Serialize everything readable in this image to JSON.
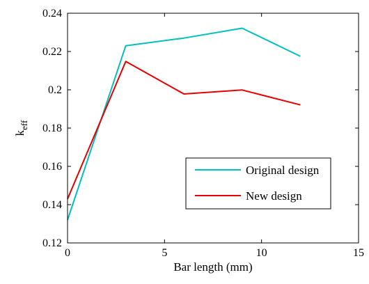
{
  "chart_data": {
    "type": "line",
    "xlabel": "Bar length (mm)",
    "ylabel_main": "k",
    "ylabel_sub": "eff",
    "xlim": [
      0,
      15
    ],
    "ylim": [
      0.12,
      0.24
    ],
    "xticks": [
      0,
      5,
      10,
      15
    ],
    "xtick_labels": [
      "0",
      "5",
      "10",
      "15"
    ],
    "yticks": [
      0.12,
      0.14,
      0.16,
      0.18,
      0.2,
      0.22,
      0.24
    ],
    "ytick_labels": [
      "0.12",
      "0.14",
      "0.16",
      "0.18",
      "0.2",
      "0.22",
      "0.24"
    ],
    "grid": false,
    "legend_position": "lower-right",
    "series": [
      {
        "name": "Original design",
        "color": "#00bfbf",
        "x": [
          0,
          3,
          6,
          9,
          12
        ],
        "y": [
          0.132,
          0.223,
          0.227,
          0.2322,
          0.2175
        ]
      },
      {
        "name": "New design",
        "color": "#e60000",
        "x": [
          0,
          3,
          6,
          9,
          12
        ],
        "y": [
          0.143,
          0.2148,
          0.1978,
          0.1999,
          0.1921
        ]
      }
    ]
  }
}
